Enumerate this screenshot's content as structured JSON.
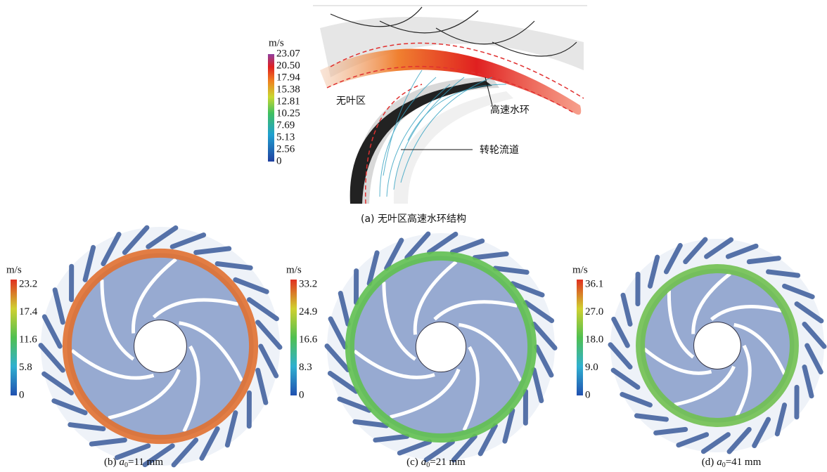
{
  "panel_a": {
    "unit": "m/s",
    "colorbar_ticks": [
      "23.07",
      "20.50",
      "17.94",
      "15.38",
      "12.81",
      "10.25",
      "7.69",
      "5.13",
      "2.56",
      "0"
    ],
    "annotations": [
      "无叶区",
      "高速水环",
      "转轮流道"
    ],
    "caption": "(a) 无叶区高速水环结构"
  },
  "panels": [
    {
      "unit": "m/s",
      "colorbar_ticks": [
        "23.2",
        "17.4",
        "11.6",
        "5.8",
        "0"
      ],
      "caption": {
        "label": "(b)",
        "symbol": "a",
        "subscript": "0",
        "value": "=11 mm"
      }
    },
    {
      "unit": "m/s",
      "colorbar_ticks": [
        "33.2",
        "24.9",
        "16.6",
        "8.3",
        "0"
      ],
      "caption": {
        "label": "(c)",
        "symbol": "a",
        "subscript": "0",
        "value": "=21 mm"
      }
    },
    {
      "unit": "m/s",
      "colorbar_ticks": [
        "36.1",
        "27.0",
        "18.0",
        "9.0",
        "0"
      ],
      "caption": {
        "label": "(d)",
        "symbol": "a",
        "subscript": "0",
        "value": "=41 mm"
      }
    }
  ]
}
